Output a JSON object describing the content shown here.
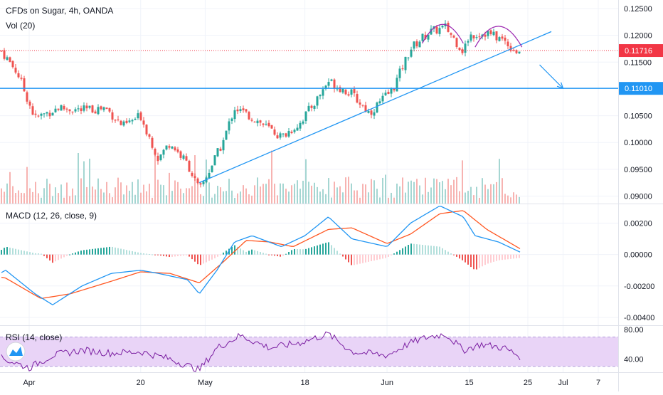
{
  "header": {
    "title": "CFDs on Sugar, 4h, OANDA",
    "volume_label": "Vol (20)",
    "macd_label": "MACD (12, 26, close, 9)",
    "rsi_label": "RSI (14, close)"
  },
  "colors": {
    "bull": "#26a69a",
    "bear": "#ef5350",
    "vol_bull": "#a5d6d2",
    "vol_bear": "#f7b3b1",
    "trend": "#2196f3",
    "hline": "#2196f3",
    "dome": "#9c27b0",
    "macd": "#2196f3",
    "signal": "#ff5722",
    "rsi": "#7b1fa2",
    "rsi_band": "#e9d4f7",
    "current_price": "#f23645",
    "grid": "#f0f3fa",
    "text": "#131722"
  },
  "chart_data": [
    {
      "type": "candlestick",
      "title": "CFDs on Sugar, 4h, OANDA",
      "ylim": [
        0.0886,
        0.1266
      ],
      "y_ticks": [
        "0.12500",
        "0.12000",
        "0.11500",
        "0.10500",
        "0.10000",
        "0.09500",
        "0.09000"
      ],
      "x_ticks": [
        "Apr",
        "20",
        "May",
        "18",
        "Jun",
        "15",
        "25",
        "Jul",
        "7"
      ],
      "current_price": 0.11716,
      "current_price_label": "0.11716",
      "horizontal_line": 0.1101,
      "horizontal_line_label": "0.11010",
      "anchors": [
        {
          "date": "Mar 27",
          "close": 0.1175
        },
        {
          "date": "Mar 30",
          "close": 0.113
        },
        {
          "date": "Apr 2",
          "close": 0.1045
        },
        {
          "date": "Apr 6",
          "close": 0.1065
        },
        {
          "date": "Apr 10",
          "close": 0.106
        },
        {
          "date": "Apr 14",
          "close": 0.1065
        },
        {
          "date": "Apr 17",
          "close": 0.103
        },
        {
          "date": "Apr 20",
          "close": 0.105
        },
        {
          "date": "Apr 23",
          "close": 0.097
        },
        {
          "date": "Apr 25",
          "close": 0.1
        },
        {
          "date": "Apr 28",
          "close": 0.096
        },
        {
          "date": "Apr 30",
          "close": 0.091
        },
        {
          "date": "May 4",
          "close": 0.1
        },
        {
          "date": "May 6",
          "close": 0.1065
        },
        {
          "date": "May 10",
          "close": 0.104
        },
        {
          "date": "May 14",
          "close": 0.101
        },
        {
          "date": "May 17",
          "close": 0.1035
        },
        {
          "date": "May 20",
          "close": 0.108
        },
        {
          "date": "May 22",
          "close": 0.1115
        },
        {
          "date": "May 26",
          "close": 0.109
        },
        {
          "date": "May 29",
          "close": 0.1055
        },
        {
          "date": "Jun 2",
          "close": 0.11
        },
        {
          "date": "Jun 5",
          "close": 0.1175
        },
        {
          "date": "Jun 8",
          "close": 0.1205
        },
        {
          "date": "Jun 11",
          "close": 0.1215
        },
        {
          "date": "Jun 14",
          "close": 0.117
        },
        {
          "date": "Jun 15",
          "close": 0.12
        },
        {
          "date": "Jun 18",
          "close": 0.1205
        },
        {
          "date": "Jun 21",
          "close": 0.119
        },
        {
          "date": "Jun 23",
          "close": 0.117
        },
        {
          "date": "Jun 24",
          "close": 0.11716
        }
      ],
      "trendline": [
        {
          "date": "Apr 30",
          "price": 0.0925
        },
        {
          "date": "Jun 29",
          "price": 0.1207
        }
      ],
      "arrow": [
        {
          "date": "Jun 27",
          "price": 0.1145
        },
        {
          "date": "Jul 1",
          "price": 0.1101
        }
      ]
    },
    {
      "type": "bar",
      "title": "Vol (20)",
      "series": "volume"
    },
    {
      "type": "line",
      "title": "MACD (12, 26, close, 9)",
      "ylim": [
        -0.0045,
        0.0032
      ],
      "y_ticks": [
        "0.00200",
        "0.00000",
        "-0.00200",
        "-0.00400"
      ],
      "macd": [
        {
          "date": "Mar 24",
          "value": -0.0018
        },
        {
          "date": "Mar 28",
          "value": -0.001
        },
        {
          "date": "Apr 2",
          "value": -0.0025
        },
        {
          "date": "Apr 5",
          "value": -0.0032
        },
        {
          "date": "Apr 10",
          "value": -0.002
        },
        {
          "date": "Apr 15",
          "value": -0.0012
        },
        {
          "date": "Apr 20",
          "value": -0.001
        },
        {
          "date": "Apr 23",
          "value": -0.0012
        },
        {
          "date": "Apr 28",
          "value": -0.0016
        },
        {
          "date": "Apr 30",
          "value": -0.0025
        },
        {
          "date": "May 3",
          "value": -0.001
        },
        {
          "date": "May 6",
          "value": 0.0008
        },
        {
          "date": "May 9",
          "value": 0.0012
        },
        {
          "date": "May 14",
          "value": 0.0005
        },
        {
          "date": "May 18",
          "value": 0.0012
        },
        {
          "date": "May 22",
          "value": 0.0024
        },
        {
          "date": "May 26",
          "value": 0.001
        },
        {
          "date": "Jun 1",
          "value": 0.0005
        },
        {
          "date": "Jun 5",
          "value": 0.002
        },
        {
          "date": "Jun 10",
          "value": 0.0031
        },
        {
          "date": "Jun 14",
          "value": 0.0024
        },
        {
          "date": "Jun 16",
          "value": 0.0012
        },
        {
          "date": "Jun 20",
          "value": 0.0008
        },
        {
          "date": "Jun 24",
          "value": 0.0001
        }
      ],
      "signal": [
        {
          "date": "Mar 24",
          "value": -0.0012
        },
        {
          "date": "Mar 28",
          "value": -0.0015
        },
        {
          "date": "Apr 3",
          "value": -0.0028
        },
        {
          "date": "Apr 8",
          "value": -0.0025
        },
        {
          "date": "Apr 15",
          "value": -0.0017
        },
        {
          "date": "Apr 20",
          "value": -0.0011
        },
        {
          "date": "Apr 25",
          "value": -0.0012
        },
        {
          "date": "Apr 30",
          "value": -0.0018
        },
        {
          "date": "May 4",
          "value": -0.0005
        },
        {
          "date": "May 8",
          "value": 0.0009
        },
        {
          "date": "May 12",
          "value": 0.0008
        },
        {
          "date": "May 16",
          "value": 0.0005
        },
        {
          "date": "May 22",
          "value": 0.0016
        },
        {
          "date": "May 26",
          "value": 0.0017
        },
        {
          "date": "Jun 1",
          "value": 0.0007
        },
        {
          "date": "Jun 5",
          "value": 0.0013
        },
        {
          "date": "Jun 10",
          "value": 0.0026
        },
        {
          "date": "Jun 14",
          "value": 0.0028
        },
        {
          "date": "Jun 18",
          "value": 0.0016
        },
        {
          "date": "Jun 24",
          "value": 0.0003
        }
      ]
    },
    {
      "type": "line",
      "title": "RSI (14, close)",
      "ylim": [
        22,
        85
      ],
      "y_ticks": [
        "80.00",
        "40.00"
      ],
      "band": [
        30,
        70
      ],
      "rsi": [
        {
          "date": "Mar 24",
          "value": 35
        },
        {
          "date": "Mar 27",
          "value": 42
        },
        {
          "date": "Apr 1",
          "value": 28
        },
        {
          "date": "Apr 5",
          "value": 45
        },
        {
          "date": "Apr 10",
          "value": 52
        },
        {
          "date": "Apr 15",
          "value": 48
        },
        {
          "date": "Apr 20",
          "value": 50
        },
        {
          "date": "Apr 25",
          "value": 40
        },
        {
          "date": "Apr 30",
          "value": 25
        },
        {
          "date": "May 3",
          "value": 55
        },
        {
          "date": "May 7",
          "value": 72
        },
        {
          "date": "May 12",
          "value": 55
        },
        {
          "date": "May 17",
          "value": 62
        },
        {
          "date": "May 22",
          "value": 74
        },
        {
          "date": "May 26",
          "value": 50
        },
        {
          "date": "Jun 1",
          "value": 45
        },
        {
          "date": "Jun 5",
          "value": 62
        },
        {
          "date": "Jun 8",
          "value": 70
        },
        {
          "date": "Jun 11",
          "value": 74
        },
        {
          "date": "Jun 14",
          "value": 52
        },
        {
          "date": "Jun 17",
          "value": 60
        },
        {
          "date": "Jun 21",
          "value": 55
        },
        {
          "date": "Jun 24",
          "value": 42
        }
      ]
    }
  ]
}
